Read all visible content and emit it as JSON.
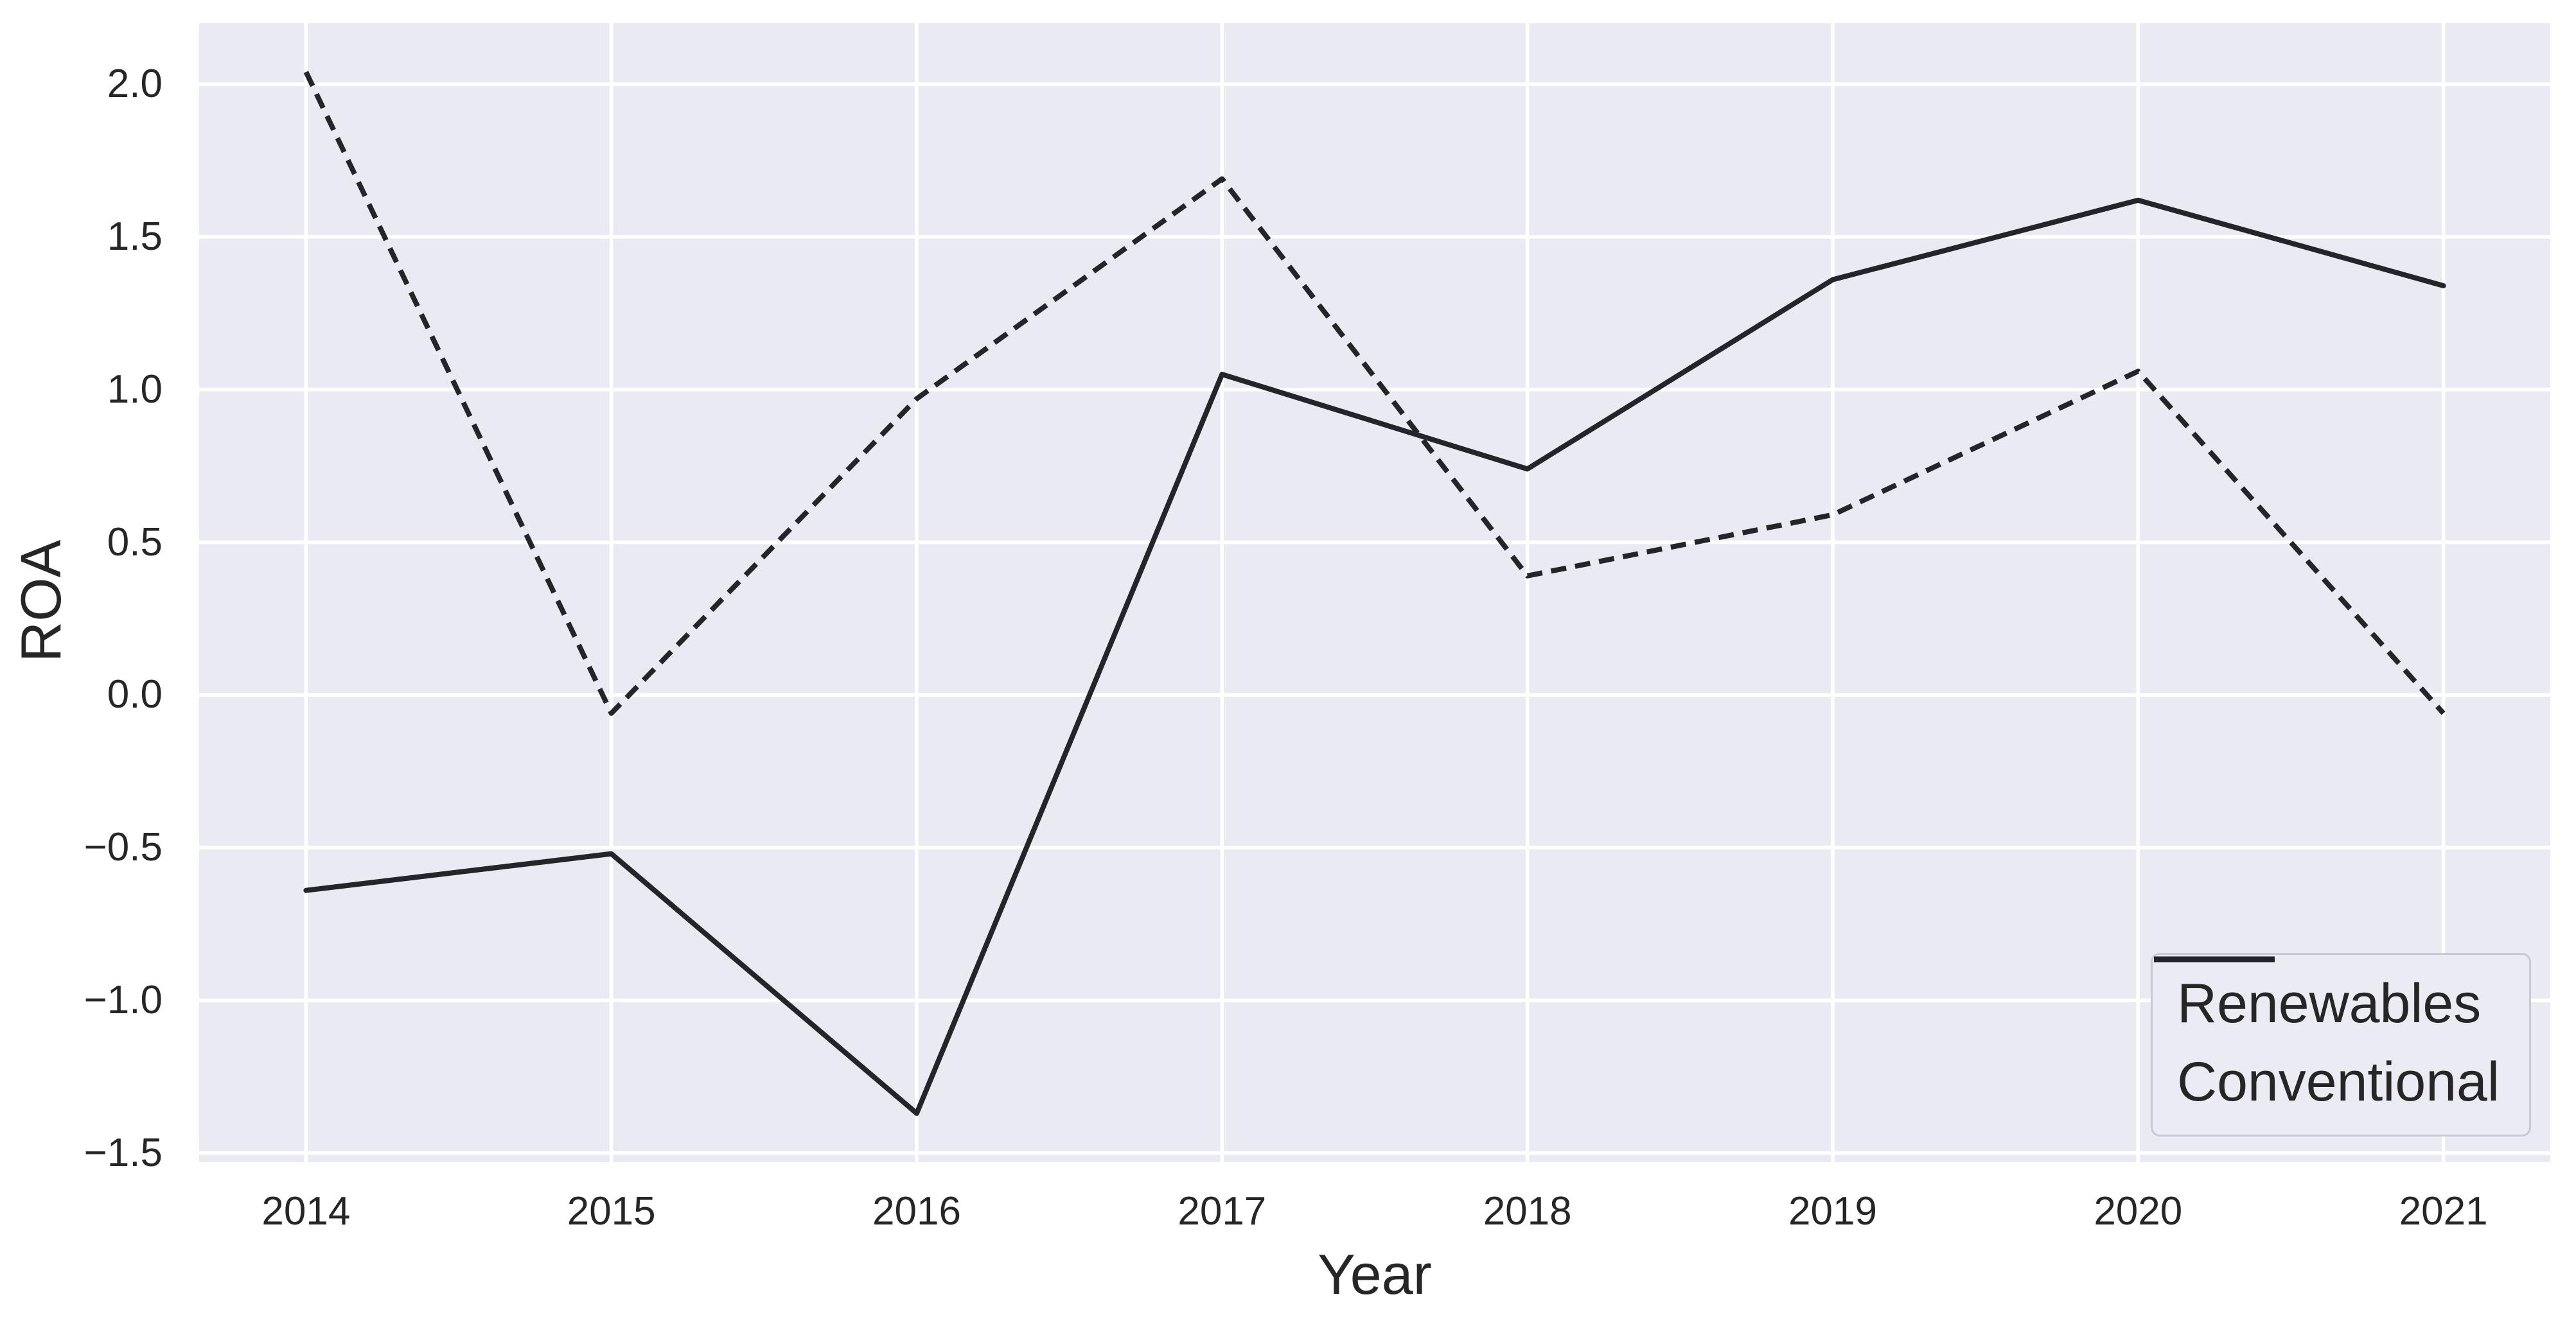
{
  "chart_data": {
    "type": "line",
    "title": "",
    "xlabel": "Year",
    "ylabel": "ROA",
    "x": [
      2014,
      2015,
      2016,
      2017,
      2018,
      2019,
      2020,
      2021
    ],
    "series": [
      {
        "name": "Renewables",
        "line_style": "solid",
        "values": [
          -0.64,
          -0.52,
          -1.37,
          1.05,
          0.74,
          1.36,
          1.62,
          1.34
        ]
      },
      {
        "name": "Conventional",
        "line_style": "dashed",
        "values": [
          2.04,
          -0.06,
          0.97,
          1.69,
          0.39,
          0.59,
          1.06,
          -0.06
        ]
      }
    ],
    "x_ticks": {
      "values": [
        2014,
        2015,
        2016,
        2017,
        2018,
        2019,
        2020,
        2021
      ],
      "labels": [
        "2014",
        "2015",
        "2016",
        "2017",
        "2018",
        "2019",
        "2020",
        "2021"
      ]
    },
    "y_ticks": {
      "values": [
        2.0,
        1.5,
        1.0,
        0.5,
        0.0,
        -0.5,
        -1.0,
        -1.5
      ],
      "labels": [
        "2.0",
        "1.5",
        "1.0",
        "0.5",
        "0.0",
        "−0.5",
        "−1.0",
        "−1.5"
      ]
    },
    "xlim": [
      2013.65,
      2021.35
    ],
    "ylim": [
      -1.53,
      2.2
    ],
    "grid": true,
    "legend_position": "lower right",
    "colors": {
      "plot_bg": "#eaeaf2",
      "grid": "#ffffff",
      "line": "#24242b",
      "text": "#262626",
      "legend_bg": "#ebebf3",
      "legend_border": "#c9c9d3"
    }
  }
}
